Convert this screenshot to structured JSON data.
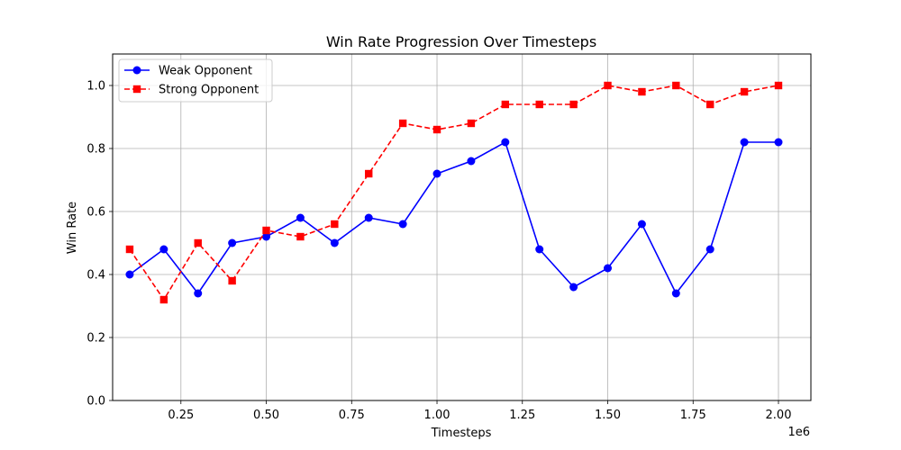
{
  "chart_data": {
    "type": "line",
    "title": "Win Rate Progression Over Timesteps",
    "xlabel": "Timesteps",
    "ylabel": "Win Rate",
    "x_offset_label": "1e6",
    "xlim": [
      0.05,
      2.095
    ],
    "ylim": [
      0,
      1.1
    ],
    "x": [
      0.1,
      0.2,
      0.3,
      0.4,
      0.5,
      0.6,
      0.7,
      0.8,
      0.9,
      1.0,
      1.1,
      1.2,
      1.3,
      1.4,
      1.5,
      1.6,
      1.7,
      1.8,
      1.9,
      2.0
    ],
    "xticks": [
      0.25,
      0.5,
      0.75,
      1.0,
      1.25,
      1.5,
      1.75,
      2.0
    ],
    "xtick_labels": [
      "0.25",
      "0.50",
      "0.75",
      "1.00",
      "1.25",
      "1.50",
      "1.75",
      "2.00"
    ],
    "yticks": [
      0.0,
      0.2,
      0.4,
      0.6,
      0.8,
      1.0
    ],
    "ytick_labels": [
      "0.0",
      "0.2",
      "0.4",
      "0.6",
      "0.8",
      "1.0"
    ],
    "grid": true,
    "legend_position": "top-left",
    "series": [
      {
        "name": "Weak Opponent",
        "color": "#0000ff",
        "marker": "circle",
        "linestyle": "solid",
        "values": [
          0.4,
          0.48,
          0.34,
          0.5,
          0.52,
          0.58,
          0.5,
          0.58,
          0.56,
          0.72,
          0.76,
          0.82,
          0.48,
          0.36,
          0.42,
          0.56,
          0.34,
          0.48,
          0.82,
          0.82
        ]
      },
      {
        "name": "Strong Opponent",
        "color": "#ff0000",
        "marker": "square",
        "linestyle": "dashed",
        "values": [
          0.48,
          0.32,
          0.5,
          0.38,
          0.54,
          0.52,
          0.56,
          0.72,
          0.88,
          0.86,
          0.88,
          0.94,
          0.94,
          0.94,
          1.0,
          0.98,
          1.0,
          0.94,
          0.98,
          1.0
        ]
      }
    ]
  }
}
